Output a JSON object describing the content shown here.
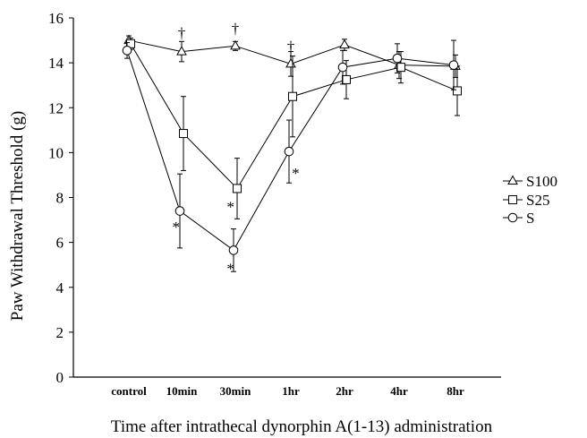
{
  "chart_data": {
    "type": "line",
    "categories": [
      "control",
      "10min",
      "30min",
      "1hr",
      "2hr",
      "4hr",
      "8hr"
    ],
    "ylabel": "Paw Withdrawal Threshold (g)",
    "xlabel": "Time after intrathecal dynorphin A(1-13) administration",
    "ylim": [
      0,
      16
    ],
    "yticks": [
      "0",
      "2",
      "4",
      "6",
      "8",
      "10",
      "12",
      "14",
      "16"
    ],
    "grid": false,
    "legend_position": "right",
    "series": [
      {
        "name": "S100",
        "marker": "triangle",
        "values": [
          15.0,
          14.5,
          14.75,
          13.95,
          14.8,
          13.9,
          13.85
        ],
        "error": [
          0.2,
          0.45,
          0.2,
          0.55,
          0.25,
          0.6,
          0.5
        ]
      },
      {
        "name": "S25",
        "marker": "square",
        "values": [
          14.85,
          10.85,
          8.4,
          12.5,
          13.25,
          13.8,
          12.75
        ],
        "error": [
          0.25,
          1.65,
          1.35,
          1.8,
          0.85,
          0.7,
          1.1
        ]
      },
      {
        "name": "S",
        "marker": "circle",
        "values": [
          14.55,
          7.4,
          5.65,
          10.05,
          13.8,
          14.2,
          13.9
        ],
        "error": [
          0.35,
          1.65,
          0.95,
          1.4,
          0.75,
          0.65,
          1.1
        ]
      }
    ],
    "annotations": [
      {
        "text": "†",
        "category": "10min",
        "y": 15.35
      },
      {
        "text": "†",
        "category": "30min",
        "y": 15.55
      },
      {
        "text": "†",
        "category": "1hr",
        "y": 14.75
      },
      {
        "text": "*",
        "category": "10min",
        "y": 6.7,
        "offset": -0.35
      },
      {
        "text": "*",
        "category": "30min",
        "y": 7.6,
        "offset": -0.3
      },
      {
        "text": "*",
        "category": "30min",
        "y": 4.85,
        "offset": -0.3
      },
      {
        "text": "*",
        "category": "1hr",
        "y": 9.1,
        "offset": 0.3
      }
    ]
  }
}
